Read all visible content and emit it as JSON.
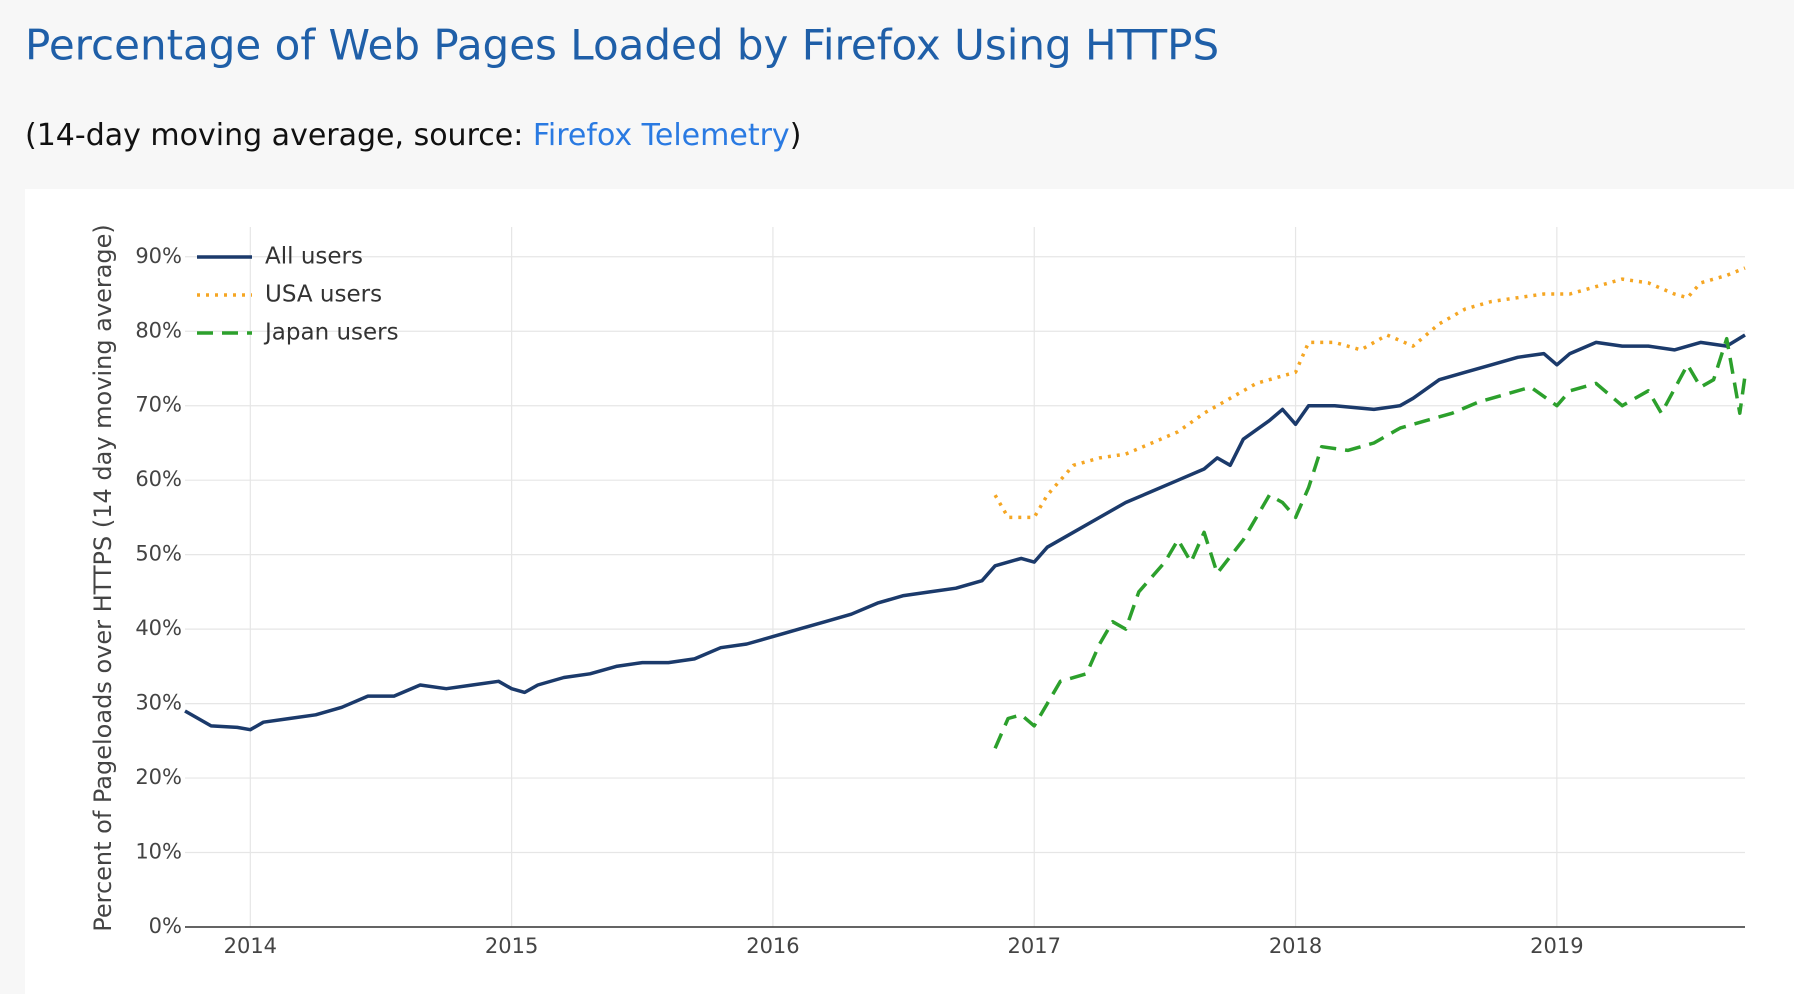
{
  "chart_data": {
    "type": "line",
    "title": "Percentage of Web Pages Loaded by Firefox Using HTTPS",
    "subtitle": [
      "(14-day moving average, source: ",
      "Firefox Telemetry",
      ")"
    ],
    "y_label": "Percent of Pageloads over HTTPS (14 day moving average)",
    "xlim": [
      2013.75,
      2019.72
    ],
    "xticks": [
      2014,
      2015,
      2016,
      2017,
      2018,
      2019
    ],
    "ylim": [
      0,
      94
    ],
    "yticks": [
      {
        "value": 0,
        "label": "0%"
      },
      {
        "value": 10,
        "label": "10%"
      },
      {
        "value": 20,
        "label": "20%"
      },
      {
        "value": 30,
        "label": "30%"
      },
      {
        "value": 40,
        "label": "40%"
      },
      {
        "value": 50,
        "label": "50%"
      },
      {
        "value": 60,
        "label": "60%"
      },
      {
        "value": 70,
        "label": "70%"
      },
      {
        "value": 80,
        "label": "80%"
      },
      {
        "value": 90,
        "label": "90%"
      }
    ],
    "grid": true,
    "legend": "top-left",
    "series": [
      {
        "name": "All users",
        "color": "#1b3a6b",
        "dash": "solid",
        "x": [
          2013.75,
          2013.85,
          2013.95,
          2014.0,
          2014.05,
          2014.15,
          2014.25,
          2014.35,
          2014.45,
          2014.55,
          2014.65,
          2014.75,
          2014.85,
          2014.95,
          2015.0,
          2015.05,
          2015.1,
          2015.2,
          2015.3,
          2015.4,
          2015.5,
          2015.6,
          2015.7,
          2015.8,
          2015.9,
          2016.0,
          2016.1,
          2016.2,
          2016.3,
          2016.4,
          2016.5,
          2016.6,
          2016.7,
          2016.8,
          2016.85,
          2016.95,
          2017.0,
          2017.05,
          2017.15,
          2017.25,
          2017.35,
          2017.45,
          2017.55,
          2017.65,
          2017.7,
          2017.75,
          2017.8,
          2017.9,
          2017.95,
          2018.0,
          2018.05,
          2018.15,
          2018.3,
          2018.4,
          2018.45,
          2018.55,
          2018.65,
          2018.75,
          2018.85,
          2018.95,
          2019.0,
          2019.05,
          2019.15,
          2019.25,
          2019.35,
          2019.45,
          2019.55,
          2019.65,
          2019.72
        ],
        "values": [
          29,
          27,
          26.8,
          26.5,
          27.5,
          28,
          28.5,
          29.5,
          31,
          31,
          32.5,
          32,
          32.5,
          33,
          32,
          31.5,
          32.5,
          33.5,
          34,
          35,
          35.5,
          35.5,
          36,
          37.5,
          38,
          39,
          40,
          41,
          42,
          43.5,
          44.5,
          45,
          45.5,
          46.5,
          48.5,
          49.5,
          49,
          51,
          53,
          55,
          57,
          58.5,
          60,
          61.5,
          63,
          62,
          65.5,
          68,
          69.5,
          67.5,
          70,
          70,
          69.5,
          70,
          71,
          73.5,
          74.5,
          75.5,
          76.5,
          77,
          75.5,
          77,
          78.5,
          78,
          78,
          77.5,
          78.5,
          78,
          79.5
        ]
      },
      {
        "name": "USA users",
        "color": "#f5a623",
        "dash": "dot",
        "x": [
          2016.85,
          2016.9,
          2017.0,
          2017.05,
          2017.15,
          2017.25,
          2017.35,
          2017.45,
          2017.55,
          2017.65,
          2017.75,
          2017.85,
          2017.95,
          2018.0,
          2018.05,
          2018.15,
          2018.25,
          2018.35,
          2018.45,
          2018.55,
          2018.65,
          2018.75,
          2018.85,
          2018.95,
          2019.05,
          2019.15,
          2019.25,
          2019.35,
          2019.45,
          2019.5,
          2019.55,
          2019.65,
          2019.72
        ],
        "values": [
          58,
          55,
          55,
          58,
          62,
          63,
          63.5,
          65,
          66.5,
          69,
          71,
          73,
          74,
          74.5,
          78.5,
          78.5,
          77.5,
          79.5,
          78,
          81,
          83,
          84,
          84.5,
          85,
          85,
          86,
          87,
          86.5,
          85,
          84.5,
          86.5,
          87.5,
          88.5
        ]
      },
      {
        "name": "Japan users",
        "color": "#2ca02c",
        "dash": "dash",
        "x": [
          2016.85,
          2016.9,
          2016.95,
          2017.0,
          2017.05,
          2017.1,
          2017.2,
          2017.25,
          2017.3,
          2017.35,
          2017.4,
          2017.5,
          2017.55,
          2017.6,
          2017.65,
          2017.7,
          2017.8,
          2017.9,
          2017.95,
          2018.0,
          2018.05,
          2018.1,
          2018.2,
          2018.3,
          2018.4,
          2018.5,
          2018.6,
          2018.7,
          2018.8,
          2018.9,
          2019.0,
          2019.05,
          2019.15,
          2019.25,
          2019.35,
          2019.4,
          2019.5,
          2019.55,
          2019.6,
          2019.65,
          2019.7,
          2019.72
        ],
        "values": [
          24,
          28,
          28.5,
          27,
          30,
          33,
          34,
          38,
          41,
          40,
          45,
          49,
          52,
          49,
          53,
          47.5,
          52,
          58,
          57,
          55,
          59,
          64.5,
          64,
          65,
          67,
          68,
          69,
          70.5,
          71.5,
          72.5,
          70,
          72,
          73,
          70,
          72,
          69,
          75.5,
          72.5,
          73.5,
          79,
          69,
          74
        ]
      }
    ]
  }
}
